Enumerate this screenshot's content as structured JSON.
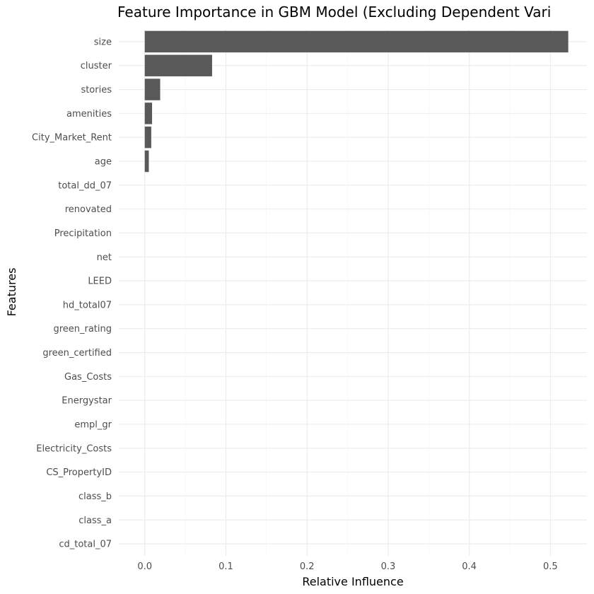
{
  "chart_data": {
    "type": "bar",
    "orientation": "horizontal",
    "title": "Feature Importance in GBM Model (Excluding Dependent Vari",
    "xlabel": "Relative Influence",
    "ylabel": "Features",
    "xlim": [
      -0.032,
      0.545
    ],
    "x_ticks": [
      0.0,
      0.1,
      0.2,
      0.3,
      0.4,
      0.5
    ],
    "x_tick_labels": [
      "0.0",
      "0.1",
      "0.2",
      "0.3",
      "0.4",
      "0.5"
    ],
    "grid": true,
    "legend": "none",
    "bar_color": "#595959",
    "categories": [
      "size",
      "cluster",
      "stories",
      "amenities",
      "City_Market_Rent",
      "age",
      "total_dd_07",
      "renovated",
      "Precipitation",
      "net",
      "LEED",
      "hd_total07",
      "green_rating",
      "green_certified",
      "Gas_Costs",
      "Energystar",
      "empl_gr",
      "Electricity_Costs",
      "CS_PropertyID",
      "class_b",
      "class_a",
      "cd_total_07"
    ],
    "values": [
      0.522,
      0.083,
      0.019,
      0.009,
      0.008,
      0.005,
      0,
      0,
      0,
      0,
      0,
      0,
      0,
      0,
      0,
      0,
      0,
      0,
      0,
      0,
      0,
      0
    ]
  }
}
